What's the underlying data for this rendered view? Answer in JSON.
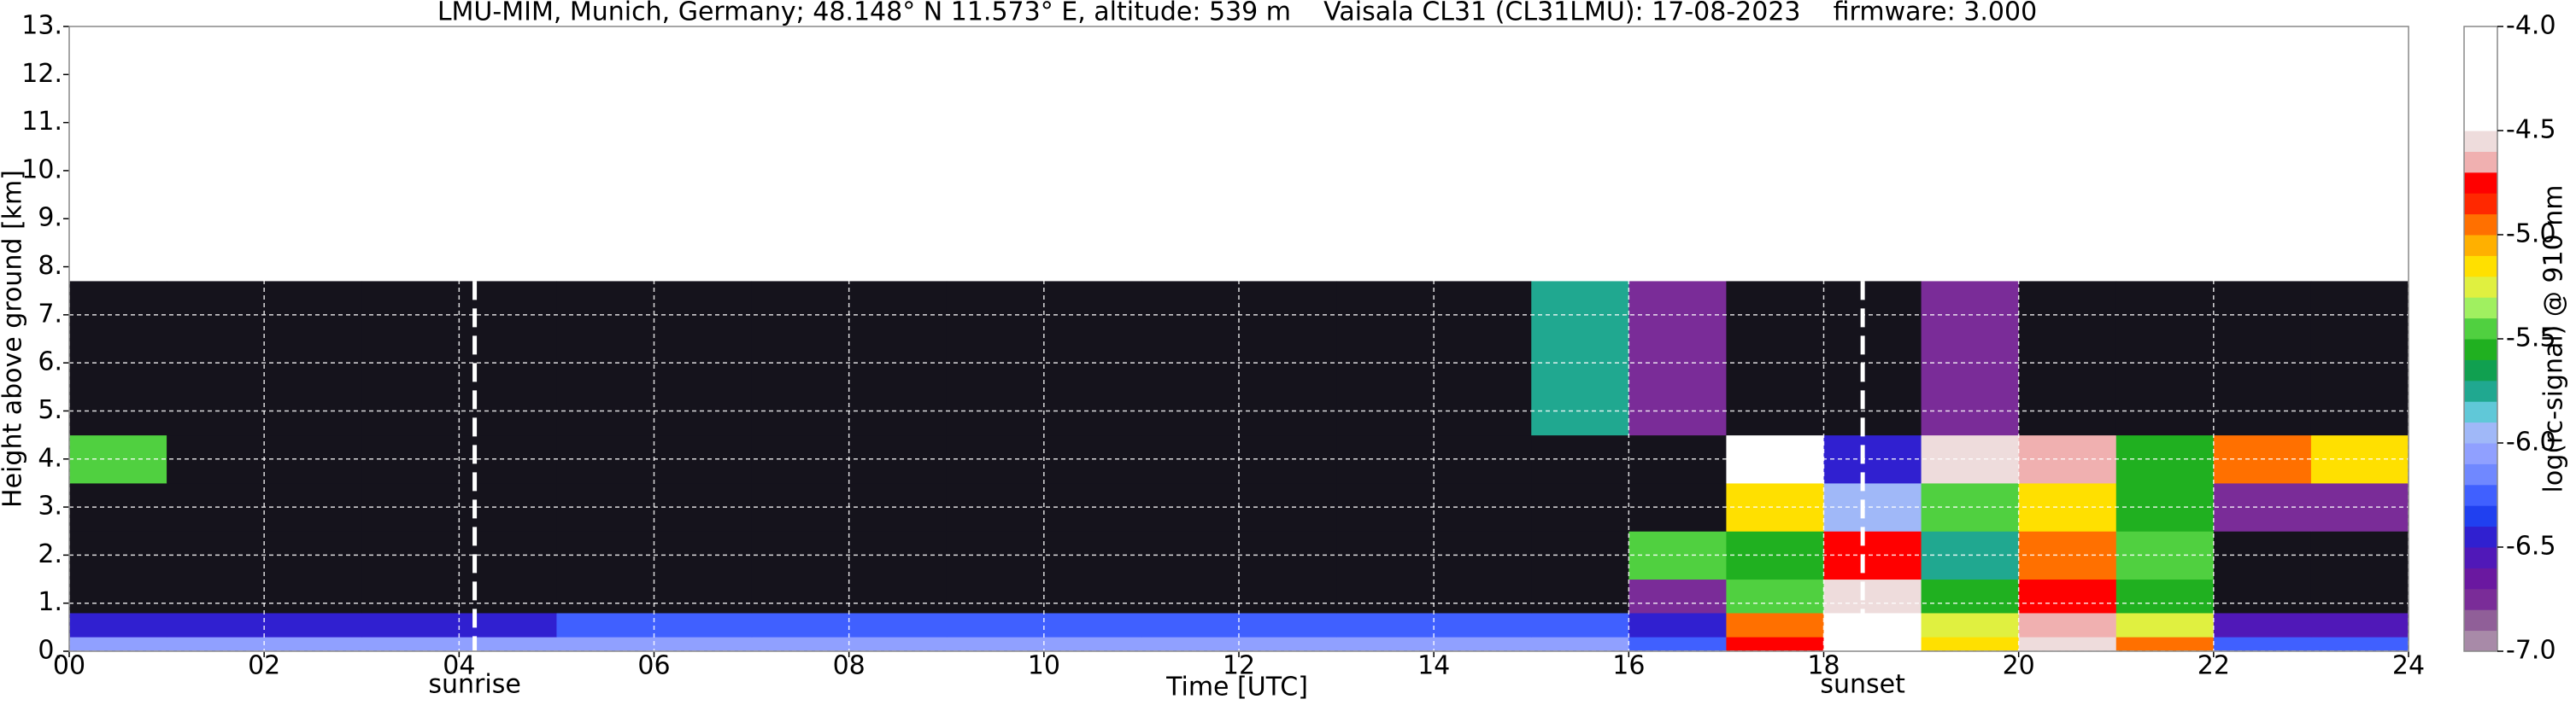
{
  "chart_data": {
    "type": "heatmap",
    "title": "LMU-MIM, Munich, Germany; 48.148° N 11.573° E, altitude: 539 m    Vaisala CL31 (CL31LMU): 17-08-2023    firmware: 3.000",
    "x_label": "Time [UTC]",
    "y_label": "Height above ground [km]",
    "colorbar_label": "log(rc-signal) @ 910 nm",
    "xlim": [
      0,
      24
    ],
    "ylim": [
      0,
      13
    ],
    "xticks": [
      {
        "value": 0,
        "label": "00"
      },
      {
        "value": 2,
        "label": "02"
      },
      {
        "value": 4,
        "label": "04"
      },
      {
        "value": 6,
        "label": "06"
      },
      {
        "value": 8,
        "label": "08"
      },
      10,
      12,
      14,
      16,
      18,
      20,
      22,
      24
    ],
    "yticks": [
      {
        "value": 0,
        "label": "0."
      },
      {
        "value": 1,
        "label": "1."
      },
      {
        "value": 2,
        "label": "2."
      },
      {
        "value": 3,
        "label": "3."
      },
      {
        "value": 4,
        "label": "4."
      },
      {
        "value": 5,
        "label": "5."
      },
      {
        "value": 6,
        "label": "6."
      },
      {
        "value": 7,
        "label": "7."
      },
      {
        "value": 8,
        "label": "8."
      },
      {
        "value": 9,
        "label": "9."
      },
      {
        "value": 10,
        "label": "10."
      },
      {
        "value": 11,
        "label": "11."
      },
      {
        "value": 12,
        "label": "12."
      },
      {
        "value": 13,
        "label": "13."
      }
    ],
    "grid": true,
    "clim": [
      -7,
      -4
    ],
    "cticks": [
      {
        "value": -4,
        "label": "-4.0"
      },
      -4.5,
      {
        "value": -5,
        "label": "-5.0"
      },
      -5.5,
      {
        "value": -6,
        "label": "-6.0"
      },
      -6.5,
      {
        "value": -7,
        "label": "-7.0"
      }
    ],
    "colors": [
      "#a88aa8",
      "#905f98",
      "#7a2c98",
      "#6a18a0",
      "#5018b8",
      "#3020d0",
      "#2040f0",
      "#4060ff",
      "#7088ff",
      "#90a0ff",
      "#a0b8f8",
      "#60c8d8",
      "#20a890",
      "#10a050",
      "#20b020",
      "#50d040",
      "#a0f060",
      "#e0f040",
      "#ffe000",
      "#ffb000",
      "#ff7000",
      "#ff2800",
      "#ff0000",
      "#f0b0b0",
      "#eedcdc",
      "#ffffff",
      "#ffffff",
      "#ffffff",
      "#ffffff",
      "#ffffff"
    ],
    "under_color": "#15131c",
    "x_bins": [
      0,
      1,
      2,
      3,
      4,
      5,
      6,
      7,
      8,
      9,
      10,
      11,
      12,
      13,
      14,
      15,
      16,
      17,
      18,
      19,
      20,
      21,
      22,
      23,
      24
    ],
    "y_bins": [
      0,
      0.3,
      0.8,
      1.5,
      2.5,
      3.5,
      4.5,
      7.7
    ],
    "values": [
      [
        -6.1,
        -6.1,
        -6.1,
        -6.1,
        -6.1,
        -6.1,
        -6.1,
        -6.1,
        -6.1,
        -6.1,
        -6.1,
        -6.1,
        -6.1,
        -6.1,
        -6.1,
        -6.1,
        -6.2,
        -4.8,
        -4.3,
        -5.2,
        -4.6,
        -5.0,
        -6.3,
        -6.3
      ],
      [
        -6.4,
        -6.4,
        -6.4,
        -6.4,
        -6.4,
        -6.3,
        -6.3,
        -6.3,
        -6.3,
        -6.3,
        -6.3,
        -6.3,
        -6.3,
        -6.3,
        -6.3,
        -6.3,
        -6.4,
        -5.0,
        -4.4,
        -5.3,
        -4.7,
        -5.3,
        -6.6,
        -6.6
      ],
      [
        -7.3,
        -7.3,
        -7.3,
        -7.3,
        -7.3,
        -7.3,
        -7.3,
        -7.3,
        -7.3,
        -7.3,
        -7.3,
        -7.3,
        -7.3,
        -7.3,
        -7.3,
        -7.3,
        -6.8,
        -5.4,
        -4.6,
        -5.6,
        -4.8,
        -5.6,
        -7.3,
        -7.3
      ],
      [
        -7.3,
        -7.3,
        -7.3,
        -7.3,
        -7.3,
        -7.3,
        -7.3,
        -7.3,
        -7.3,
        -7.3,
        -7.3,
        -7.3,
        -7.3,
        -7.3,
        -7.3,
        -7.3,
        -5.5,
        -5.6,
        -4.8,
        -5.7,
        -5.0,
        -5.5,
        -7.3,
        -7.3
      ],
      [
        -7.3,
        -7.3,
        -7.3,
        -7.3,
        -7.3,
        -7.3,
        -7.3,
        -7.3,
        -7.3,
        -7.3,
        -7.3,
        -7.3,
        -7.3,
        -7.3,
        -7.3,
        -7.3,
        -7.3,
        -5.2,
        -6.0,
        -5.4,
        -5.2,
        -5.6,
        -6.8,
        -6.8
      ],
      [
        -5.5,
        -7.3,
        -7.3,
        -7.3,
        -7.3,
        -7.3,
        -7.3,
        -7.3,
        -7.3,
        -7.3,
        -7.3,
        -7.3,
        -7.3,
        -7.3,
        -7.3,
        -7.3,
        -7.3,
        -4.5,
        -6.5,
        -4.6,
        -4.7,
        -5.6,
        -5.0,
        -5.2
      ],
      [
        -7.3,
        -7.3,
        -7.3,
        -7.3,
        -7.3,
        -7.3,
        -7.3,
        -7.3,
        -7.3,
        -7.3,
        -7.3,
        -7.3,
        -7.3,
        -7.3,
        -7.3,
        -5.8,
        -6.8,
        -7.3,
        -7.3,
        -6.8,
        -7.3,
        -7.3,
        -7.3,
        -7.3
      ]
    ],
    "annotations": [
      {
        "text": "sunrise",
        "x": 4.16
      },
      {
        "text": "sunset",
        "x": 18.4
      }
    ]
  }
}
